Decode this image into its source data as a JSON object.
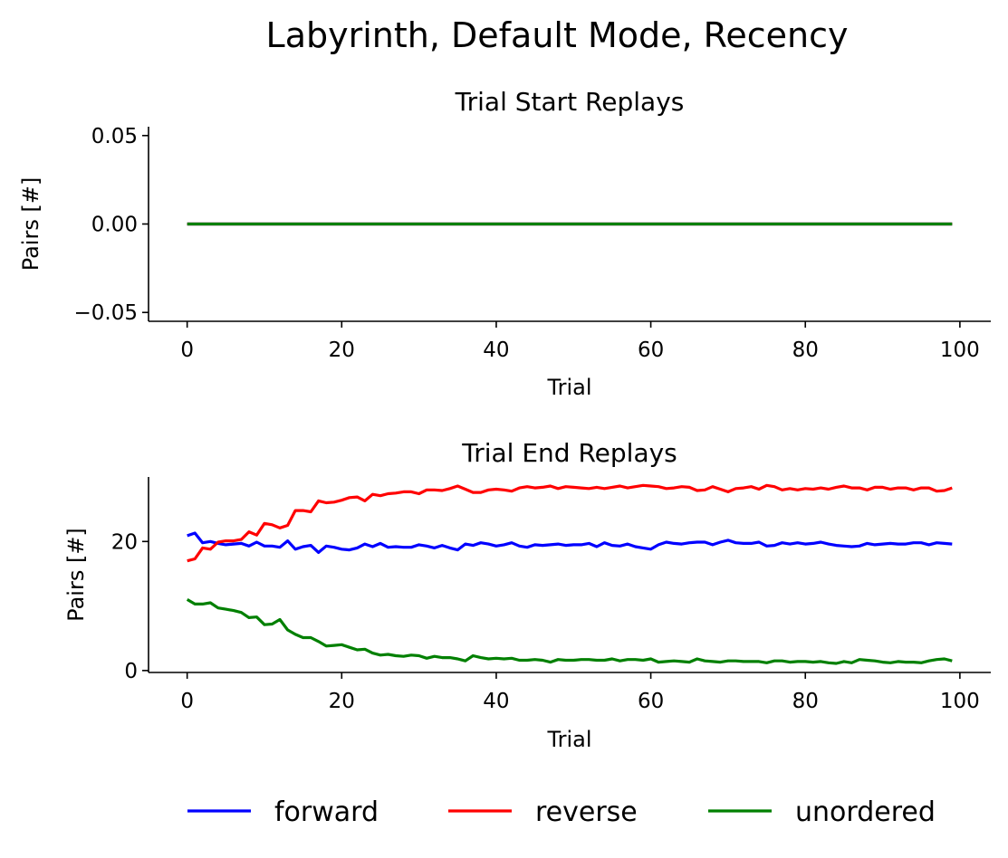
{
  "figure": {
    "suptitle": "Labyrinth, Default Mode, Recency"
  },
  "legend": {
    "placement": "bottom-center",
    "items": [
      {
        "label": "forward",
        "color": "#0000ff"
      },
      {
        "label": "reverse",
        "color": "#ff0000"
      },
      {
        "label": "unordered",
        "color": "#008000"
      }
    ]
  },
  "chart_data": [
    {
      "type": "line",
      "title": "Trial Start Replays",
      "xlabel": "Trial",
      "ylabel": "Pairs [#]",
      "xlim": [
        -5,
        104
      ],
      "ylim": [
        -0.055,
        0.055
      ],
      "xticks": [
        0,
        20,
        40,
        60,
        80,
        100
      ],
      "xtick_labels": [
        "0",
        "20",
        "40",
        "60",
        "80",
        "100"
      ],
      "yticks": [
        -0.05,
        0.0,
        0.05
      ],
      "ytick_labels": [
        "−0.05",
        "0.00",
        "0.05"
      ],
      "grid": false,
      "x": {
        "start": 0,
        "end": 99,
        "step": 1
      },
      "series": [
        {
          "name": "forward",
          "color": "#0000ff",
          "values": [
            0,
            0,
            0,
            0,
            0,
            0,
            0,
            0,
            0,
            0,
            0,
            0,
            0,
            0,
            0,
            0,
            0,
            0,
            0,
            0,
            0,
            0,
            0,
            0,
            0,
            0,
            0,
            0,
            0,
            0,
            0,
            0,
            0,
            0,
            0,
            0,
            0,
            0,
            0,
            0,
            0,
            0,
            0,
            0,
            0,
            0,
            0,
            0,
            0,
            0,
            0,
            0,
            0,
            0,
            0,
            0,
            0,
            0,
            0,
            0,
            0,
            0,
            0,
            0,
            0,
            0,
            0,
            0,
            0,
            0,
            0,
            0,
            0,
            0,
            0,
            0,
            0,
            0,
            0,
            0,
            0,
            0,
            0,
            0,
            0,
            0,
            0,
            0,
            0,
            0,
            0,
            0,
            0,
            0,
            0,
            0,
            0,
            0,
            0,
            0
          ]
        },
        {
          "name": "reverse",
          "color": "#ff0000",
          "values": [
            0,
            0,
            0,
            0,
            0,
            0,
            0,
            0,
            0,
            0,
            0,
            0,
            0,
            0,
            0,
            0,
            0,
            0,
            0,
            0,
            0,
            0,
            0,
            0,
            0,
            0,
            0,
            0,
            0,
            0,
            0,
            0,
            0,
            0,
            0,
            0,
            0,
            0,
            0,
            0,
            0,
            0,
            0,
            0,
            0,
            0,
            0,
            0,
            0,
            0,
            0,
            0,
            0,
            0,
            0,
            0,
            0,
            0,
            0,
            0,
            0,
            0,
            0,
            0,
            0,
            0,
            0,
            0,
            0,
            0,
            0,
            0,
            0,
            0,
            0,
            0,
            0,
            0,
            0,
            0,
            0,
            0,
            0,
            0,
            0,
            0,
            0,
            0,
            0,
            0,
            0,
            0,
            0,
            0,
            0,
            0,
            0,
            0,
            0,
            0
          ]
        },
        {
          "name": "unordered",
          "color": "#008000",
          "values": [
            0,
            0,
            0,
            0,
            0,
            0,
            0,
            0,
            0,
            0,
            0,
            0,
            0,
            0,
            0,
            0,
            0,
            0,
            0,
            0,
            0,
            0,
            0,
            0,
            0,
            0,
            0,
            0,
            0,
            0,
            0,
            0,
            0,
            0,
            0,
            0,
            0,
            0,
            0,
            0,
            0,
            0,
            0,
            0,
            0,
            0,
            0,
            0,
            0,
            0,
            0,
            0,
            0,
            0,
            0,
            0,
            0,
            0,
            0,
            0,
            0,
            0,
            0,
            0,
            0,
            0,
            0,
            0,
            0,
            0,
            0,
            0,
            0,
            0,
            0,
            0,
            0,
            0,
            0,
            0,
            0,
            0,
            0,
            0,
            0,
            0,
            0,
            0,
            0,
            0,
            0,
            0,
            0,
            0,
            0,
            0,
            0,
            0,
            0,
            0
          ]
        }
      ]
    },
    {
      "type": "line",
      "title": "Trial End Replays",
      "xlabel": "Trial",
      "ylabel": "Pairs [#]",
      "xlim": [
        -5,
        104
      ],
      "ylim": [
        -0.3,
        30
      ],
      "xticks": [
        0,
        20,
        40,
        60,
        80,
        100
      ],
      "xtick_labels": [
        "0",
        "20",
        "40",
        "60",
        "80",
        "100"
      ],
      "yticks": [
        0,
        20
      ],
      "ytick_labels": [
        "0",
        "20"
      ],
      "grid": false,
      "x": {
        "start": 0,
        "end": 99,
        "step": 1
      },
      "series": [
        {
          "name": "forward",
          "color": "#0000ff",
          "values": [
            20.9,
            21.3,
            19.8,
            20.0,
            19.7,
            19.5,
            19.6,
            19.7,
            19.3,
            19.9,
            19.3,
            19.3,
            19.1,
            20.1,
            18.8,
            19.2,
            19.4,
            18.3,
            19.3,
            19.1,
            18.8,
            18.7,
            19.0,
            19.6,
            19.2,
            19.7,
            19.1,
            19.2,
            19.1,
            19.1,
            19.5,
            19.3,
            19.0,
            19.4,
            19.0,
            18.7,
            19.6,
            19.4,
            19.8,
            19.6,
            19.3,
            19.5,
            19.8,
            19.3,
            19.1,
            19.5,
            19.4,
            19.5,
            19.6,
            19.4,
            19.5,
            19.5,
            19.7,
            19.2,
            19.8,
            19.4,
            19.3,
            19.6,
            19.2,
            19.0,
            18.8,
            19.5,
            19.9,
            19.7,
            19.6,
            19.8,
            19.9,
            19.9,
            19.5,
            19.9,
            20.2,
            19.8,
            19.7,
            19.7,
            19.9,
            19.3,
            19.4,
            19.8,
            19.6,
            19.8,
            19.6,
            19.7,
            19.9,
            19.6,
            19.4,
            19.3,
            19.2,
            19.3,
            19.7,
            19.5,
            19.6,
            19.7,
            19.6,
            19.6,
            19.8,
            19.8,
            19.5,
            19.8,
            19.7,
            19.6
          ]
        },
        {
          "name": "reverse",
          "color": "#ff0000",
          "values": [
            17.0,
            17.3,
            19.0,
            18.8,
            19.9,
            20.1,
            20.1,
            20.3,
            21.5,
            21.0,
            22.8,
            22.6,
            22.1,
            22.5,
            24.8,
            24.8,
            24.6,
            26.3,
            26.0,
            26.1,
            26.4,
            26.8,
            26.9,
            26.3,
            27.3,
            27.1,
            27.4,
            27.5,
            27.7,
            27.7,
            27.4,
            28.0,
            28.0,
            27.9,
            28.2,
            28.6,
            28.1,
            27.6,
            27.6,
            28.0,
            28.1,
            28.0,
            27.8,
            28.3,
            28.5,
            28.3,
            28.4,
            28.6,
            28.2,
            28.5,
            28.4,
            28.3,
            28.2,
            28.4,
            28.2,
            28.4,
            28.6,
            28.3,
            28.5,
            28.7,
            28.6,
            28.5,
            28.2,
            28.3,
            28.5,
            28.4,
            27.9,
            28.0,
            28.5,
            28.1,
            27.7,
            28.2,
            28.3,
            28.5,
            28.1,
            28.7,
            28.5,
            28.0,
            28.2,
            28.0,
            28.2,
            28.1,
            28.3,
            28.1,
            28.4,
            28.6,
            28.3,
            28.3,
            28.0,
            28.4,
            28.4,
            28.1,
            28.3,
            28.3,
            28.0,
            28.3,
            28.3,
            27.8,
            27.9,
            28.3
          ]
        },
        {
          "name": "unordered",
          "color": "#008000",
          "values": [
            11.0,
            10.3,
            10.3,
            10.5,
            9.7,
            9.5,
            9.3,
            9.0,
            8.2,
            8.3,
            7.1,
            7.2,
            7.9,
            6.3,
            5.6,
            5.1,
            5.1,
            4.5,
            3.8,
            3.9,
            4.0,
            3.6,
            3.2,
            3.3,
            2.7,
            2.4,
            2.5,
            2.3,
            2.2,
            2.4,
            2.3,
            1.9,
            2.2,
            2.0,
            2.0,
            1.8,
            1.5,
            2.3,
            2.0,
            1.8,
            1.9,
            1.8,
            1.9,
            1.6,
            1.6,
            1.7,
            1.6,
            1.3,
            1.7,
            1.6,
            1.6,
            1.7,
            1.7,
            1.6,
            1.6,
            1.8,
            1.5,
            1.7,
            1.7,
            1.6,
            1.8,
            1.3,
            1.4,
            1.5,
            1.4,
            1.3,
            1.8,
            1.5,
            1.4,
            1.3,
            1.5,
            1.5,
            1.4,
            1.4,
            1.4,
            1.2,
            1.5,
            1.5,
            1.3,
            1.4,
            1.4,
            1.3,
            1.4,
            1.2,
            1.1,
            1.4,
            1.2,
            1.7,
            1.6,
            1.5,
            1.3,
            1.2,
            1.4,
            1.3,
            1.3,
            1.2,
            1.5,
            1.7,
            1.8,
            1.5
          ]
        }
      ]
    }
  ]
}
